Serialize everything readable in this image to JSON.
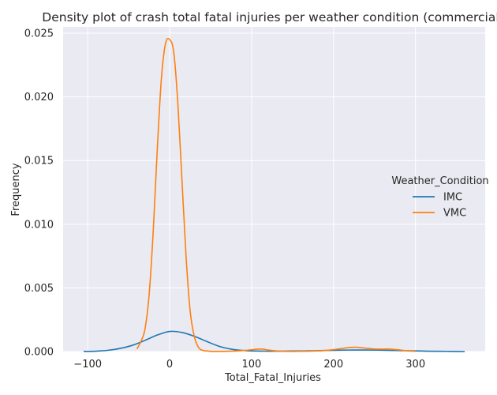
{
  "chart_data": {
    "type": "line",
    "title": "Density plot of crash total fatal injuries per weather condition (commercial)",
    "xlabel": "Total_Fatal_Injuries",
    "ylabel": "Frequency",
    "xlim": [
      -130,
      385
    ],
    "ylim": [
      0,
      0.0255
    ],
    "xticks": [
      -100,
      0,
      100,
      200,
      300
    ],
    "xtick_labels": [
      "−100",
      "0",
      "100",
      "200",
      "300"
    ],
    "yticks": [
      0,
      0.005,
      0.01,
      0.015,
      0.02,
      0.025
    ],
    "ytick_labels": [
      "0.000",
      "0.005",
      "0.010",
      "0.015",
      "0.020",
      "0.025"
    ],
    "grid": true,
    "legend": {
      "title": "Weather_Condition",
      "placement": "right"
    },
    "series": [
      {
        "name": "IMC",
        "color": "#1f77b4",
        "x": [
          -105,
          -90,
          -75,
          -60,
          -45,
          -30,
          -15,
          0,
          15,
          30,
          45,
          60,
          75,
          90,
          105,
          120,
          135,
          150,
          165,
          180,
          195,
          210,
          225,
          240,
          255,
          270,
          285,
          300,
          315,
          330,
          345,
          360
        ],
        "y": [
          1e-05,
          3e-05,
          0.0001,
          0.00025,
          0.0005,
          0.00088,
          0.0013,
          0.00158,
          0.0015,
          0.0012,
          0.0008,
          0.00042,
          0.00019,
          8e-05,
          4e-05,
          3e-05,
          3e-05,
          4e-05,
          5e-05,
          7e-05,
          9e-05,
          0.00011,
          0.00012,
          0.00012,
          0.00011,
          9e-05,
          7e-05,
          5e-05,
          3e-05,
          2e-05,
          1e-05,
          0.0
        ]
      },
      {
        "name": "VMC",
        "color": "#ff7f0e",
        "x": [
          -40,
          -35,
          -30,
          -25,
          -20,
          -15,
          -10,
          -5,
          0,
          5,
          10,
          15,
          20,
          25,
          30,
          35,
          40,
          50,
          60,
          70,
          80,
          90,
          100,
          105,
          110,
          115,
          120,
          130,
          140,
          150,
          160,
          170,
          180,
          190,
          200,
          210,
          220,
          225,
          230,
          240,
          250,
          260,
          265,
          270,
          280,
          290,
          300
        ],
        "y": [
          0.0002,
          0.0008,
          0.0018,
          0.0045,
          0.0095,
          0.016,
          0.0215,
          0.0242,
          0.0245,
          0.0235,
          0.0195,
          0.0135,
          0.0075,
          0.0032,
          0.0012,
          0.00035,
          0.0001,
          2e-05,
          1e-05,
          2e-05,
          4e-05,
          8e-05,
          0.00014,
          0.00018,
          0.0002,
          0.00018,
          0.00012,
          5e-05,
          2e-05,
          1e-05,
          2e-05,
          3e-05,
          5e-05,
          8e-05,
          0.00015,
          0.00024,
          0.00032,
          0.00034,
          0.00033,
          0.00026,
          0.0002,
          0.00019,
          0.0002,
          0.00019,
          0.00013,
          6e-05,
          2e-05
        ]
      }
    ]
  }
}
